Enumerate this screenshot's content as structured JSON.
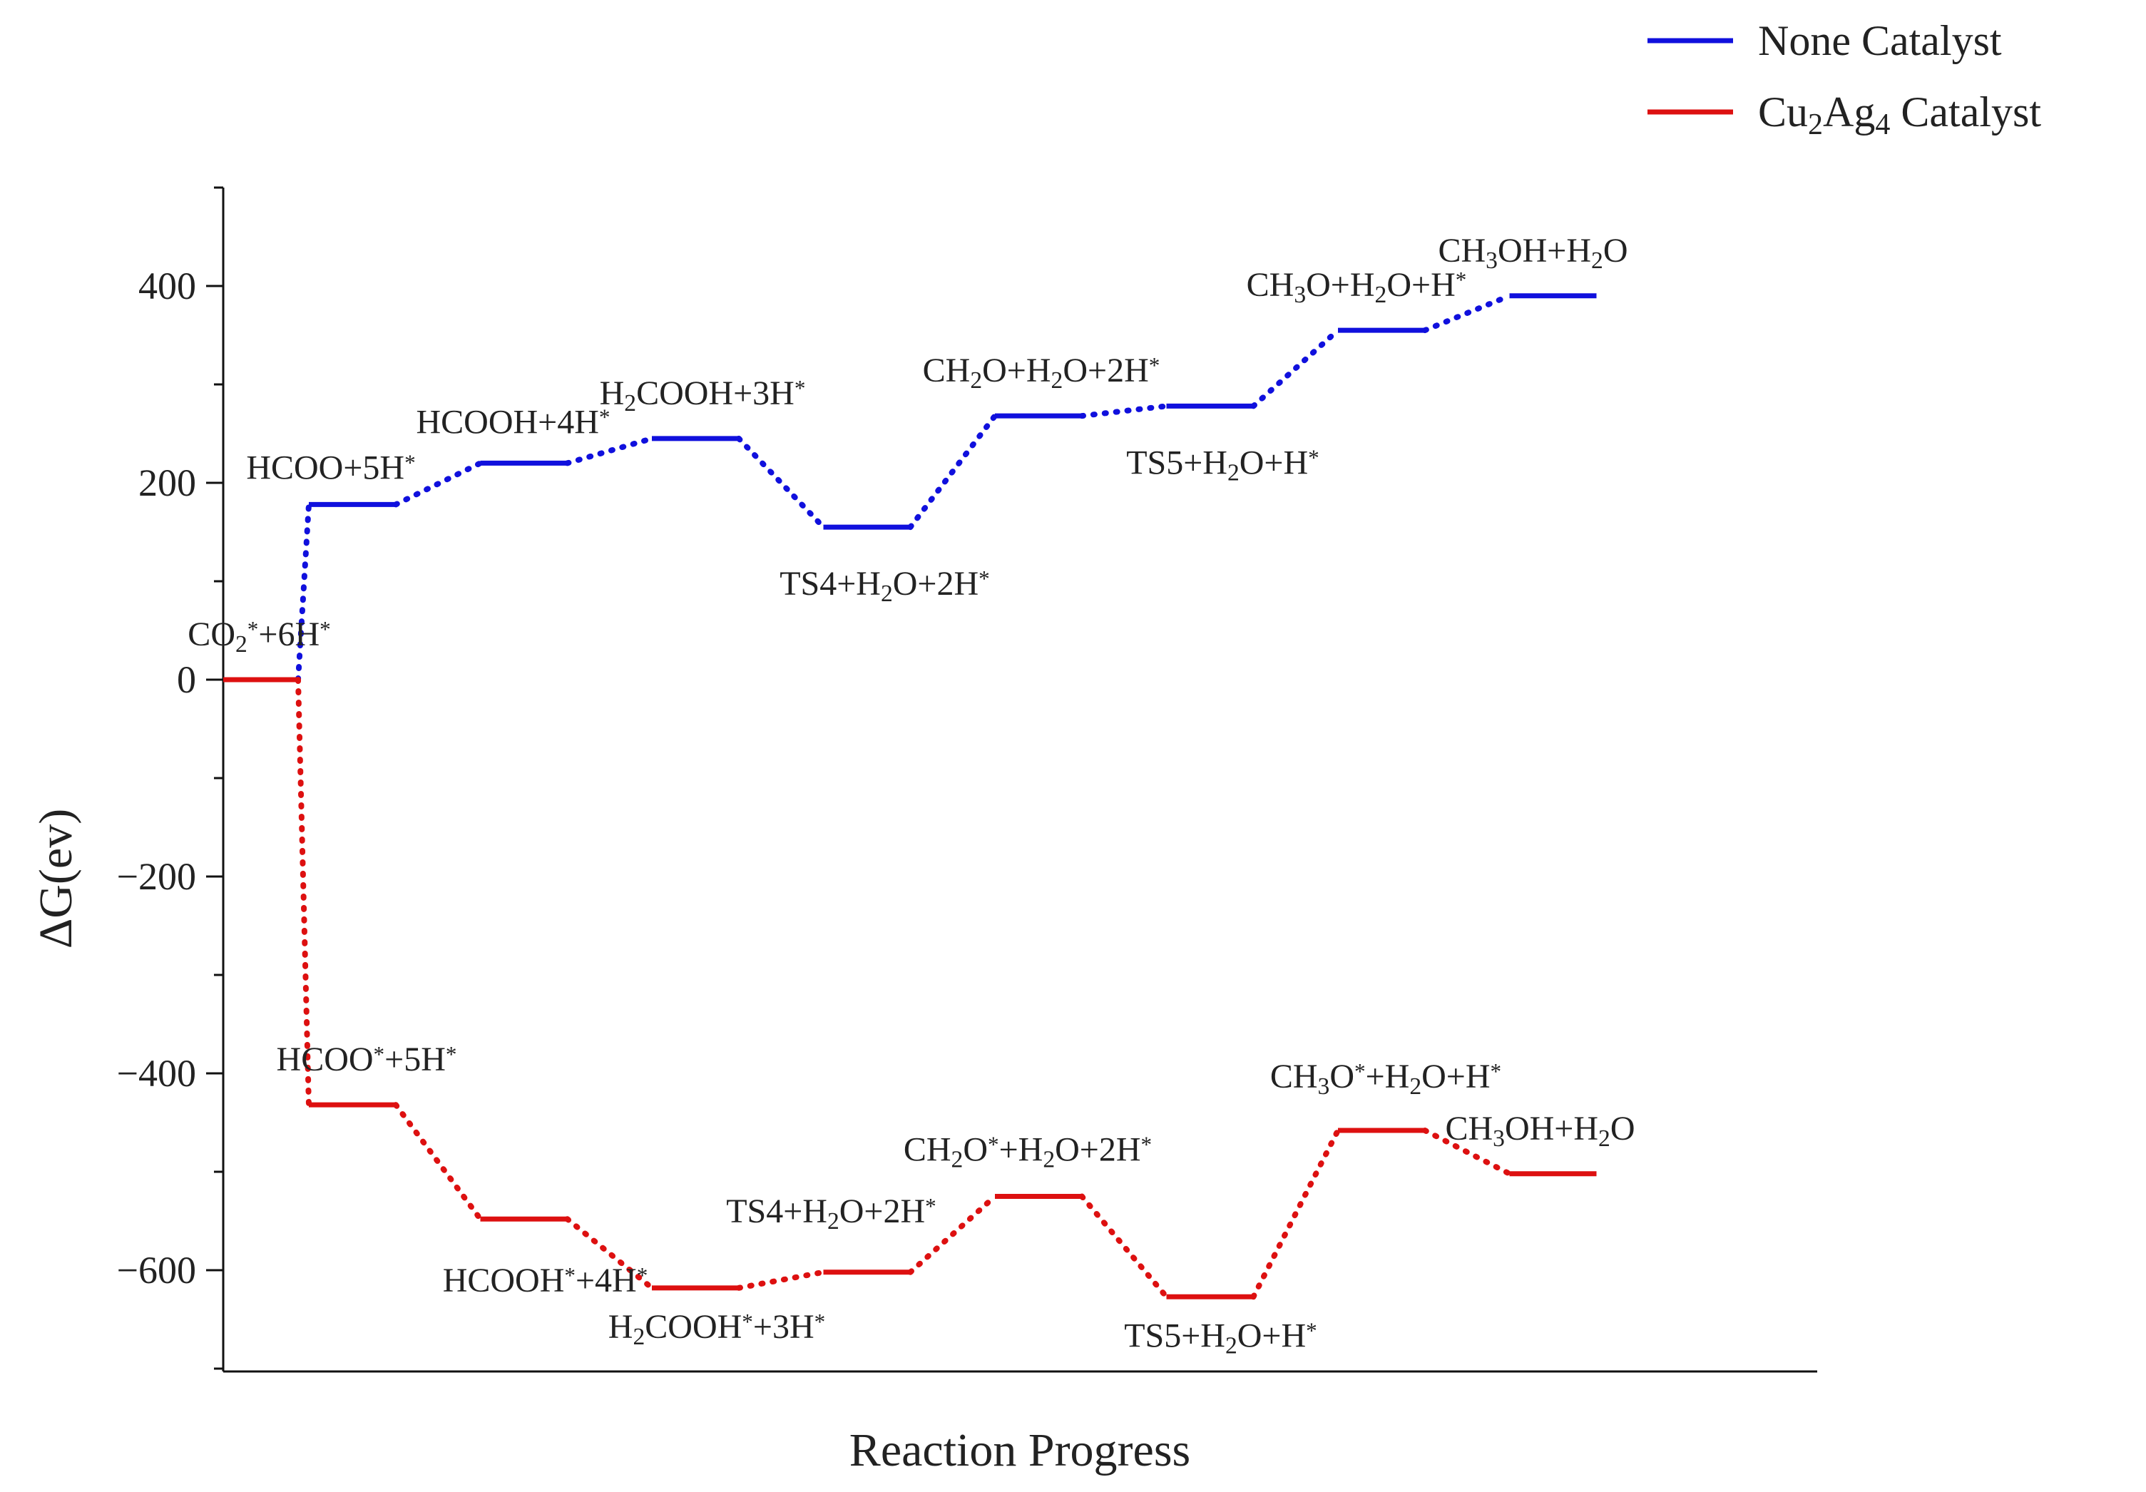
{
  "chart_data": {
    "type": "line",
    "title": "",
    "xlabel": "Reaction Progress",
    "ylabel": "ΔG(ev)",
    "ylim": [
      -700,
      500
    ],
    "yticks": [
      400,
      200,
      0,
      -200,
      -400,
      -600
    ],
    "ytick_labels": [
      "400",
      "200",
      "0",
      "−200",
      "−400",
      "−600"
    ],
    "legend": {
      "placement": "top-right"
    },
    "x_steps": [
      1,
      2,
      3,
      4,
      5,
      6,
      7,
      8,
      9,
      10
    ],
    "series": [
      {
        "name": "None Catalyst",
        "color": "#1010dd",
        "values": [
          0,
          178,
          220,
          245,
          155,
          268,
          278,
          355,
          390
        ],
        "labels": [
          [
            {
              "t": "CO"
            },
            {
              "t": "2",
              "sub": true
            },
            {
              "t": "*",
              "sup": true
            },
            {
              "t": "+6H"
            },
            {
              "t": "*",
              "sup": true
            }
          ],
          [
            {
              "t": "HCOO+5H"
            },
            {
              "t": "*",
              "sup": true
            }
          ],
          [
            {
              "t": "HCOOH+4H"
            },
            {
              "t": "*",
              "sup": true
            }
          ],
          [
            {
              "t": "H"
            },
            {
              "t": "2",
              "sub": true
            },
            {
              "t": "COOH+3H"
            },
            {
              "t": "*",
              "sup": true
            }
          ],
          [
            {
              "t": "TS4+H"
            },
            {
              "t": "2",
              "sub": true
            },
            {
              "t": "O+2H"
            },
            {
              "t": "*",
              "sup": true
            }
          ],
          [
            {
              "t": "CH"
            },
            {
              "t": "2",
              "sub": true
            },
            {
              "t": "O+H"
            },
            {
              "t": "2",
              "sub": true
            },
            {
              "t": "O+2H"
            },
            {
              "t": "*",
              "sup": true
            }
          ],
          [
            {
              "t": "TS5+H"
            },
            {
              "t": "2",
              "sub": true
            },
            {
              "t": "O+H"
            },
            {
              "t": "*",
              "sup": true
            }
          ],
          [
            {
              "t": "CH"
            },
            {
              "t": "3",
              "sub": true
            },
            {
              "t": "O+H"
            },
            {
              "t": "2",
              "sub": true
            },
            {
              "t": "O+H"
            },
            {
              "t": "*",
              "sup": true
            }
          ],
          [
            {
              "t": "CH"
            },
            {
              "t": "3",
              "sub": true
            },
            {
              "t": "OH+H"
            },
            {
              "t": "2",
              "sub": true
            },
            {
              "t": "O"
            }
          ]
        ]
      },
      {
        "name": "Cu2Ag4 Catalyst",
        "color": "#dd1010",
        "values": [
          0,
          -432,
          -548,
          -618,
          -602,
          -525,
          -627,
          -458,
          -502
        ],
        "labels": [
          [],
          [
            {
              "t": "HCOO"
            },
            {
              "t": "*",
              "sup": true
            },
            {
              "t": "+5H"
            },
            {
              "t": "*",
              "sup": true
            }
          ],
          [
            {
              "t": "HCOOH"
            },
            {
              "t": "*",
              "sup": true
            },
            {
              "t": "+4H"
            },
            {
              "t": "*",
              "sup": true
            }
          ],
          [
            {
              "t": "H"
            },
            {
              "t": "2",
              "sub": true
            },
            {
              "t": "COOH"
            },
            {
              "t": "*",
              "sup": true
            },
            {
              "t": "+3H"
            },
            {
              "t": "*",
              "sup": true
            }
          ],
          [
            {
              "t": "TS4+H"
            },
            {
              "t": "2",
              "sub": true
            },
            {
              "t": "O+2H"
            },
            {
              "t": "*",
              "sup": true
            }
          ],
          [
            {
              "t": "CH"
            },
            {
              "t": "2",
              "sub": true
            },
            {
              "t": "O"
            },
            {
              "t": "*",
              "sup": true
            },
            {
              "t": "+H"
            },
            {
              "t": "2",
              "sub": true
            },
            {
              "t": "O+2H"
            },
            {
              "t": "*",
              "sup": true
            }
          ],
          [
            {
              "t": "TS5+H"
            },
            {
              "t": "2",
              "sub": true
            },
            {
              "t": "O+H"
            },
            {
              "t": "*",
              "sup": true
            }
          ],
          [
            {
              "t": "CH"
            },
            {
              "t": "3",
              "sub": true
            },
            {
              "t": "O"
            },
            {
              "t": "*",
              "sup": true
            },
            {
              "t": "+H"
            },
            {
              "t": "2",
              "sub": true
            },
            {
              "t": "O+H"
            },
            {
              "t": "*",
              "sup": true
            }
          ],
          [
            {
              "t": "CH"
            },
            {
              "t": "3",
              "sub": true
            },
            {
              "t": "OH+H"
            },
            {
              "t": "2",
              "sub": true
            },
            {
              "t": "O"
            }
          ]
        ]
      }
    ],
    "legend_entries": [
      [
        {
          "t": "None Catalyst"
        }
      ],
      [
        {
          "t": "Cu"
        },
        {
          "t": "2",
          "sub": true
        },
        {
          "t": "Ag"
        },
        {
          "t": "4",
          "sub": true
        },
        {
          "t": " Catalyst"
        }
      ]
    ]
  }
}
